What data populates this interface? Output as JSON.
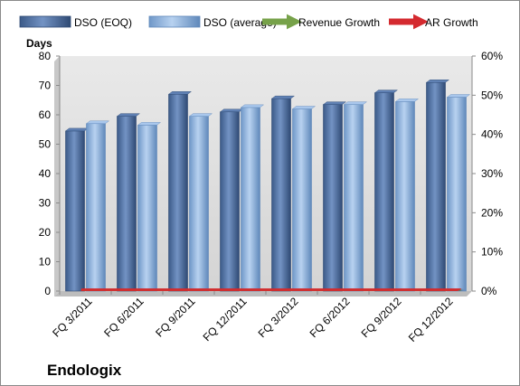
{
  "company": "Endologix",
  "chart_data": {
    "type": "bar",
    "categories": [
      "FQ 3/2011",
      "FQ 6/2011",
      "FQ 9/2011",
      "FQ 12/2011",
      "FQ 3/2012",
      "FQ 6/2012",
      "FQ 9/2012",
      "FQ 12/2012"
    ],
    "ylabel": "Days",
    "ylim": [
      0,
      80
    ],
    "yticks": [
      0,
      10,
      20,
      30,
      40,
      50,
      60,
      70,
      80
    ],
    "y2lim": [
      0,
      60
    ],
    "y2ticks": [
      "0%",
      "10%",
      "20%",
      "30%",
      "40%",
      "50%",
      "60%"
    ],
    "grid": false,
    "legend_position": "top",
    "series": [
      {
        "name": "DSO (EOQ)",
        "type": "bar",
        "axis": "left",
        "color": "#4f6f9f",
        "values": [
          54.5,
          59.5,
          67,
          61,
          65.5,
          63.5,
          67.5,
          71
        ]
      },
      {
        "name": "DSO (average)",
        "type": "bar",
        "axis": "left",
        "color": "#8db3e2",
        "values": [
          57,
          56.5,
          59.5,
          62.5,
          62,
          63.5,
          64.5,
          66
        ]
      },
      {
        "name": "Revenue Growth",
        "type": "line",
        "axis": "right",
        "color": "#77a24a",
        "values": [
          0.28,
          0.225,
          0.245,
          0.21,
          0.31,
          0.33,
          0.195,
          0.235
        ]
      },
      {
        "name": "AR Growth",
        "type": "line",
        "axis": "right",
        "color": "#d42a2f",
        "values": [
          0.16,
          0.13,
          0.28,
          0.275,
          0.56,
          0.38,
          0.2,
          0.46
        ]
      }
    ]
  }
}
